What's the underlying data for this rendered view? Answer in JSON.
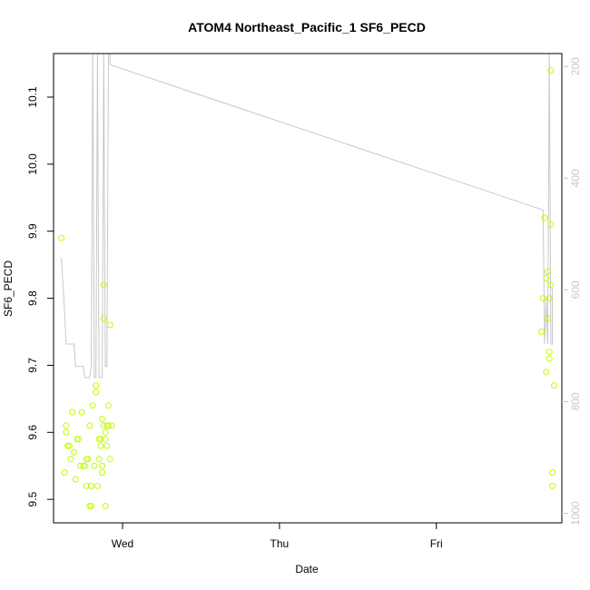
{
  "chart_data": {
    "type": "scatter",
    "title": "ATOM4 Northeast_Pacific_1 SF6_PECD",
    "xlabel": "Date",
    "ylabel": "SF6_PECD",
    "x_ticks": [
      "Wed",
      "Thu",
      "Fri"
    ],
    "x_tick_days": [
      0,
      1,
      2
    ],
    "xlim_days": [
      -0.44,
      2.8
    ],
    "ylim": [
      9.465,
      10.165
    ],
    "y_ticks": [
      9.5,
      9.6,
      9.7,
      9.8,
      9.9,
      10.0,
      10.1
    ],
    "y2_ticks": [
      200,
      400,
      600,
      800,
      1000
    ],
    "y2_inverted": true,
    "y2lim": [
      1017,
      177
    ],
    "colors": {
      "points": "#bfff00",
      "line": "#c8c8c8",
      "right_axis": "#c8c8c8"
    },
    "series": [
      {
        "type": "scatter",
        "values": [
          [
            -0.39,
            9.89
          ],
          [
            -0.37,
            9.54
          ],
          [
            -0.36,
            9.61
          ],
          [
            -0.36,
            9.6
          ],
          [
            -0.35,
            9.58
          ],
          [
            -0.34,
            9.58
          ],
          [
            -0.33,
            9.56
          ],
          [
            -0.32,
            9.63
          ],
          [
            -0.31,
            9.57
          ],
          [
            -0.3,
            9.53
          ],
          [
            -0.29,
            9.59
          ],
          [
            -0.28,
            9.59
          ],
          [
            -0.27,
            9.55
          ],
          [
            -0.26,
            9.63
          ],
          [
            -0.25,
            9.55
          ],
          [
            -0.24,
            9.55
          ],
          [
            -0.23,
            9.56
          ],
          [
            -0.23,
            9.52
          ],
          [
            -0.22,
            9.56
          ],
          [
            -0.21,
            9.61
          ],
          [
            -0.21,
            9.49
          ],
          [
            -0.2,
            9.49
          ],
          [
            -0.2,
            9.52
          ],
          [
            -0.19,
            9.64
          ],
          [
            -0.18,
            9.55
          ],
          [
            -0.17,
            9.67
          ],
          [
            -0.17,
            9.66
          ],
          [
            -0.16,
            9.52
          ],
          [
            -0.15,
            9.59
          ],
          [
            -0.15,
            9.56
          ],
          [
            -0.14,
            9.58
          ],
          [
            -0.14,
            9.59
          ],
          [
            -0.13,
            9.54
          ],
          [
            -0.13,
            9.55
          ],
          [
            -0.13,
            9.62
          ],
          [
            -0.12,
            9.82
          ],
          [
            -0.12,
            9.77
          ],
          [
            -0.12,
            9.61
          ],
          [
            -0.11,
            9.49
          ],
          [
            -0.11,
            9.59
          ],
          [
            -0.11,
            9.6
          ],
          [
            -0.1,
            9.61
          ],
          [
            -0.1,
            9.58
          ],
          [
            -0.09,
            9.64
          ],
          [
            -0.09,
            9.61
          ],
          [
            -0.08,
            9.76
          ],
          [
            -0.08,
            9.56
          ],
          [
            -0.07,
            9.61
          ],
          [
            2.67,
            9.75
          ],
          [
            2.68,
            9.8
          ],
          [
            2.69,
            9.92
          ],
          [
            2.7,
            9.69
          ],
          [
            2.7,
            9.83
          ],
          [
            2.71,
            9.84
          ],
          [
            2.71,
            9.77
          ],
          [
            2.72,
            9.8
          ],
          [
            2.72,
            9.72
          ],
          [
            2.72,
            9.71
          ],
          [
            2.73,
            9.91
          ],
          [
            2.73,
            10.14
          ],
          [
            2.73,
            9.82
          ],
          [
            2.74,
            9.54
          ],
          [
            2.74,
            9.52
          ],
          [
            2.75,
            9.67
          ]
        ]
      },
      {
        "type": "line",
        "axis": "right",
        "values": [
          [
            -0.39,
            543
          ],
          [
            -0.37,
            637
          ],
          [
            -0.36,
            697
          ],
          [
            -0.34,
            697
          ],
          [
            -0.32,
            697
          ],
          [
            -0.31,
            697
          ],
          [
            -0.3,
            737
          ],
          [
            -0.28,
            737
          ],
          [
            -0.26,
            737
          ],
          [
            -0.25,
            737
          ],
          [
            -0.24,
            757
          ],
          [
            -0.22,
            757
          ],
          [
            -0.21,
            757
          ],
          [
            -0.2,
            737
          ],
          [
            -0.19,
            177
          ],
          [
            -0.18,
            757
          ],
          [
            -0.17,
            757
          ],
          [
            -0.16,
            177
          ],
          [
            -0.15,
            757
          ],
          [
            -0.14,
            757
          ],
          [
            -0.13,
            757
          ],
          [
            -0.12,
            177
          ],
          [
            -0.11,
            737
          ],
          [
            -0.1,
            737
          ],
          [
            -0.09,
            177
          ],
          [
            -0.08,
            177
          ],
          [
            -0.08,
            197
          ],
          [
            2.68,
            457
          ],
          [
            2.69,
            697
          ],
          [
            2.7,
            617
          ],
          [
            2.71,
            697
          ],
          [
            2.72,
            177
          ],
          [
            2.73,
            697
          ],
          [
            2.74,
            697
          ],
          [
            2.74,
            597
          ]
        ]
      }
    ]
  }
}
